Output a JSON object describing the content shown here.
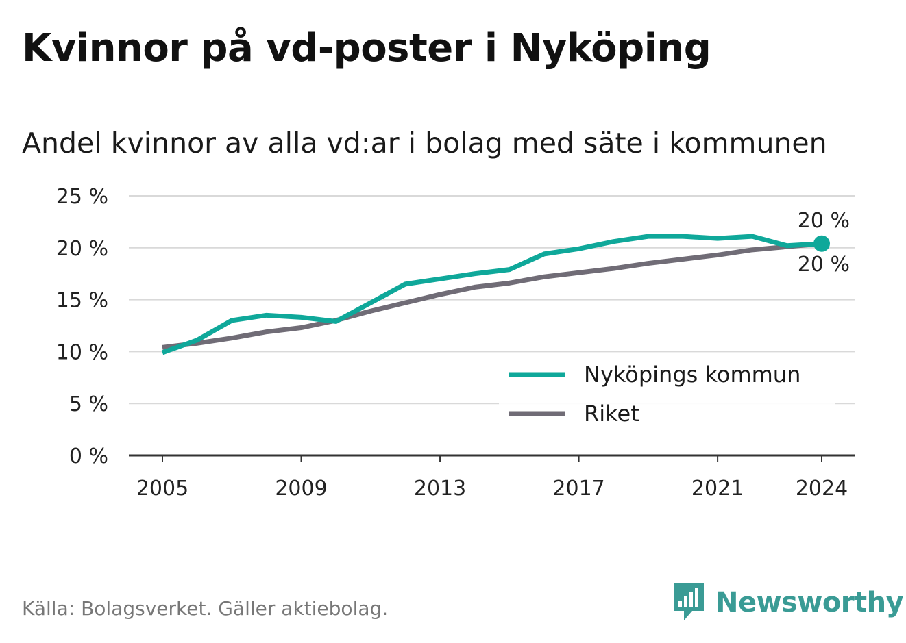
{
  "title": "Kvinnor på vd-poster i Nyköping",
  "subtitle": "Andel kvinnor av alla vd:ar i bolag med säte i kommunen",
  "source": "Källa: Bolagsverket. Gäller aktiebolag.",
  "brand": {
    "name": "Newsworthy",
    "color": "#3a9b95",
    "icon": "newsworthy-logo-icon"
  },
  "colors": {
    "nykoping": "#0fa89a",
    "riket": "#706c76",
    "grid": "#d9d9d9",
    "axis": "#333333"
  },
  "chart_data": {
    "type": "line",
    "title": "Kvinnor på vd-poster i Nyköping",
    "subtitle": "Andel kvinnor av alla vd:ar i bolag med säte i kommunen",
    "x": [
      2005,
      2006,
      2007,
      2008,
      2009,
      2010,
      2011,
      2012,
      2013,
      2014,
      2015,
      2016,
      2017,
      2018,
      2019,
      2020,
      2021,
      2022,
      2023,
      2024
    ],
    "x_ticks": [
      2005,
      2009,
      2013,
      2017,
      2021,
      2024
    ],
    "y_ticks": [
      0,
      5,
      10,
      15,
      20,
      25
    ],
    "y_tick_labels": [
      "0 %",
      "5 %",
      "10 %",
      "15 %",
      "20 %",
      "25 %"
    ],
    "ylim": [
      0,
      25
    ],
    "grid": true,
    "legend_position": "bottom-right",
    "series": [
      {
        "name": "Nyköpings kommun",
        "color": "#0fa89a",
        "values": [
          9.9,
          11.1,
          13.0,
          13.5,
          13.3,
          12.9,
          14.7,
          16.5,
          17.0,
          17.5,
          17.9,
          19.4,
          19.9,
          20.6,
          21.1,
          21.1,
          20.9,
          21.1,
          20.2,
          20.4
        ],
        "end_label": "20 %"
      },
      {
        "name": "Riket",
        "color": "#706c76",
        "values": [
          10.4,
          10.8,
          11.3,
          11.9,
          12.3,
          13.0,
          13.9,
          14.7,
          15.5,
          16.2,
          16.6,
          17.2,
          17.6,
          18.0,
          18.5,
          18.9,
          19.3,
          19.8,
          20.1,
          20.4
        ],
        "end_label": "20 %"
      }
    ]
  }
}
